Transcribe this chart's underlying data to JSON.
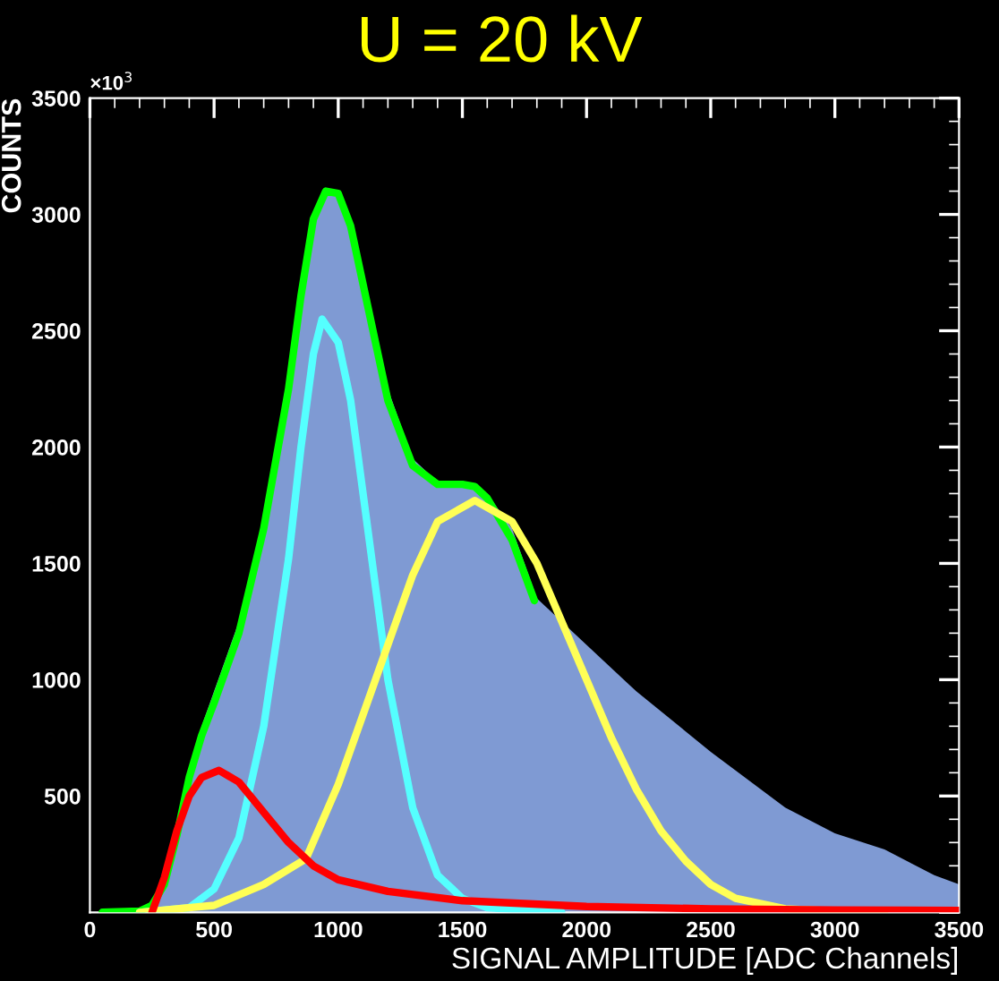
{
  "chart_data": {
    "type": "line",
    "title": "U = 20 kV",
    "xlabel": "SIGNAL AMPLITUDE [ADC Channels]",
    "ylabel": "COUNTS",
    "annotations": [
      "×10$^{3}$"
    ],
    "xlim": [
      0,
      3500
    ],
    "ylim": [
      0,
      3500
    ],
    "xticks": [
      0,
      500,
      1000,
      1500,
      2000,
      2500,
      3000,
      3500
    ],
    "yticks": [
      {
        "value": 0,
        "label": null
      },
      500,
      1000,
      1500,
      2000,
      2500,
      3000,
      3500
    ],
    "grid": false,
    "legend": false,
    "marker": "none",
    "line_style": "solid",
    "series": [
      {
        "type": "area",
        "color": "#7f9ad3",
        "x": [
          0,
          100,
          200,
          250,
          300,
          350,
          400,
          450,
          500,
          600,
          700,
          800,
          850,
          900,
          950,
          1000,
          1050,
          1100,
          1200,
          1300,
          1400,
          1500,
          1600,
          1700,
          1800,
          2000,
          2200,
          2500,
          2800,
          3000,
          3200,
          3400,
          3500
        ],
        "values": [
          0,
          2,
          10,
          40,
          150,
          350,
          600,
          800,
          950,
          1250,
          1650,
          2200,
          2600,
          2950,
          3100,
          3080,
          2950,
          2700,
          2250,
          1950,
          1850,
          1840,
          1800,
          1650,
          1350,
          1150,
          950,
          690,
          450,
          340,
          270,
          160,
          120
        ]
      },
      {
        "color": "#00ff00",
        "x": [
          50,
          200,
          250,
          300,
          350,
          400,
          450,
          500,
          600,
          700,
          800,
          850,
          900,
          950,
          1000,
          1050,
          1100,
          1200,
          1300,
          1400,
          1500,
          1550,
          1600,
          1700,
          1790
        ],
        "values": [
          0,
          5,
          30,
          120,
          330,
          580,
          760,
          900,
          1200,
          1650,
          2250,
          2650,
          2980,
          3100,
          3090,
          2950,
          2700,
          2200,
          1920,
          1840,
          1840,
          1830,
          1780,
          1600,
          1340
        ]
      },
      {
        "color": "#55ffff",
        "x": [
          200,
          400,
          500,
          600,
          700,
          800,
          850,
          900,
          935,
          1000,
          1050,
          1100,
          1200,
          1300,
          1400,
          1500,
          1600,
          1900
        ],
        "values": [
          0,
          20,
          100,
          320,
          800,
          1520,
          2000,
          2400,
          2550,
          2450,
          2200,
          1800,
          1000,
          450,
          160,
          60,
          20,
          0
        ]
      },
      {
        "color": "#ffff55",
        "x": [
          200,
          500,
          700,
          870,
          1000,
          1100,
          1200,
          1300,
          1400,
          1550,
          1700,
          1800,
          1900,
          2000,
          2100,
          2200,
          2300,
          2400,
          2500,
          2600,
          2800,
          3000,
          3200
        ],
        "values": [
          0,
          30,
          120,
          230,
          550,
          850,
          1150,
          1450,
          1680,
          1770,
          1680,
          1500,
          1250,
          1000,
          750,
          530,
          350,
          220,
          120,
          60,
          15,
          5,
          0
        ]
      },
      {
        "color": "#ff0000",
        "x": [
          250,
          300,
          350,
          400,
          450,
          520,
          600,
          700,
          800,
          900,
          1000,
          1200,
          1500,
          2000,
          2500,
          3000,
          3500
        ],
        "values": [
          0,
          150,
          350,
          500,
          580,
          610,
          560,
          430,
          300,
          200,
          140,
          90,
          50,
          25,
          15,
          10,
          8
        ]
      }
    ]
  }
}
